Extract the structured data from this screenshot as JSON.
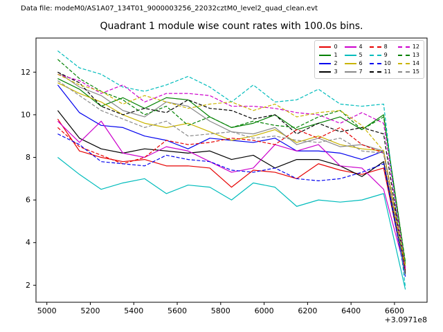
{
  "header": {
    "data_file_label": "Data file: modeM0/AS1A07_134T01_9000003256_22032cztM0_level2_quad_clean.evt"
  },
  "chart_data": {
    "type": "line",
    "title": "Quadrant 1 module wise count rates with 100.0s bins.",
    "xlabel": "",
    "ylabel": "",
    "x_offset_label": "+3.0971e8",
    "xlim": [
      4950,
      6750
    ],
    "ylim": [
      1.2,
      13.6
    ],
    "x_ticks": [
      5000,
      5200,
      5400,
      5600,
      5800,
      6000,
      6200,
      6400,
      6600
    ],
    "y_ticks": [
      2,
      4,
      6,
      8,
      10,
      12
    ],
    "grid": false,
    "legend_position": "upper right",
    "x": [
      5050,
      5150,
      5250,
      5350,
      5450,
      5550,
      5650,
      5750,
      5850,
      5950,
      6050,
      6150,
      6250,
      6350,
      6450,
      6550,
      6650
    ],
    "series": [
      {
        "name": "0",
        "color": "#e60000",
        "dash": "solid",
        "values": [
          9.8,
          8.3,
          8.0,
          7.8,
          7.9,
          7.6,
          7.6,
          7.5,
          6.6,
          7.4,
          7.3,
          7.0,
          7.7,
          7.4,
          7.2,
          7.5,
          2.6
        ]
      },
      {
        "name": "1",
        "color": "#008000",
        "dash": "solid",
        "values": [
          11.7,
          11.2,
          10.4,
          10.8,
          10.3,
          10.8,
          10.7,
          9.9,
          9.4,
          9.6,
          10.0,
          9.3,
          9.6,
          9.9,
          9.3,
          10.0,
          3.0
        ]
      },
      {
        "name": "2",
        "color": "#0000ee",
        "dash": "solid",
        "values": [
          11.4,
          10.1,
          9.5,
          9.4,
          9.0,
          8.8,
          8.4,
          8.9,
          8.8,
          8.7,
          8.9,
          8.3,
          8.3,
          8.2,
          7.9,
          8.3,
          2.8
        ]
      },
      {
        "name": "3",
        "color": "#000000",
        "dash": "solid",
        "values": [
          10.2,
          8.9,
          8.4,
          8.2,
          8.4,
          8.3,
          8.2,
          8.3,
          7.9,
          8.1,
          7.5,
          7.9,
          7.9,
          7.6,
          7.1,
          7.8,
          2.5
        ]
      },
      {
        "name": "4",
        "color": "#cc00cc",
        "dash": "solid",
        "values": [
          9.7,
          8.7,
          9.7,
          8.2,
          8.0,
          8.5,
          8.3,
          7.8,
          7.3,
          7.5,
          8.6,
          8.3,
          8.6,
          7.6,
          7.5,
          6.5,
          2.7
        ]
      },
      {
        "name": "5",
        "color": "#00bcbc",
        "dash": "solid",
        "values": [
          8.0,
          7.2,
          6.5,
          6.8,
          7.0,
          6.3,
          6.7,
          6.6,
          6.0,
          6.8,
          6.6,
          5.7,
          6.0,
          5.9,
          6.0,
          6.3,
          1.8
        ]
      },
      {
        "name": "6",
        "color": "#c9b400",
        "dash": "solid",
        "values": [
          11.5,
          11.0,
          10.6,
          10.0,
          9.6,
          9.4,
          9.6,
          9.2,
          8.8,
          9.0,
          9.3,
          8.7,
          9.0,
          8.6,
          8.4,
          8.3,
          2.9
        ]
      },
      {
        "name": "7",
        "color": "#888888",
        "dash": "solid",
        "values": [
          12.0,
          11.3,
          10.9,
          10.2,
          9.9,
          10.6,
          10.4,
          9.7,
          9.2,
          9.1,
          9.4,
          8.6,
          8.9,
          8.5,
          8.6,
          8.3,
          2.8
        ]
      },
      {
        "name": "8",
        "color": "#e60000",
        "dash": "dashed",
        "values": [
          9.4,
          8.5,
          8.1,
          7.7,
          8.0,
          8.8,
          8.6,
          8.7,
          8.9,
          8.8,
          8.6,
          9.3,
          8.9,
          9.4,
          8.6,
          8.2,
          2.7
        ]
      },
      {
        "name": "9",
        "color": "#00bcbc",
        "dash": "dashed",
        "values": [
          13.0,
          12.2,
          11.9,
          11.3,
          11.1,
          11.4,
          11.8,
          11.3,
          10.6,
          11.4,
          10.6,
          10.7,
          11.2,
          10.5,
          10.4,
          10.5,
          1.9
        ]
      },
      {
        "name": "10",
        "color": "#0000ee",
        "dash": "dashed",
        "values": [
          9.1,
          8.6,
          7.8,
          7.7,
          7.6,
          8.1,
          7.9,
          7.8,
          7.4,
          7.3,
          7.5,
          7.0,
          6.9,
          7.0,
          7.3,
          7.7,
          2.4
        ]
      },
      {
        "name": "11",
        "color": "#000000",
        "dash": "dashed",
        "values": [
          12.0,
          11.5,
          10.4,
          10.0,
          10.3,
          10.1,
          10.7,
          10.3,
          10.2,
          9.8,
          10.0,
          9.1,
          9.6,
          9.2,
          9.4,
          9.1,
          2.6
        ]
      },
      {
        "name": "12",
        "color": "#cc00cc",
        "dash": "dashed",
        "values": [
          11.9,
          11.6,
          11.0,
          11.4,
          10.6,
          11.0,
          11.0,
          10.9,
          10.4,
          10.4,
          10.3,
          10.1,
          10.0,
          9.6,
          10.1,
          9.6,
          2.8
        ]
      },
      {
        "name": "13",
        "color": "#008000",
        "dash": "dashed",
        "values": [
          12.6,
          11.7,
          11.1,
          10.7,
          10.0,
          10.4,
          9.5,
          9.9,
          9.4,
          9.7,
          9.5,
          9.4,
          9.9,
          10.2,
          9.3,
          9.9,
          3.1
        ]
      },
      {
        "name": "14",
        "color": "#c9b400",
        "dash": "dashed",
        "values": [
          11.9,
          11.4,
          11.1,
          10.5,
          10.9,
          10.6,
          10.3,
          10.5,
          10.6,
          10.2,
          10.5,
          9.9,
          10.1,
          10.2,
          9.5,
          8.3,
          2.9
        ]
      },
      {
        "name": "15",
        "color": "#888888",
        "dash": "dashed",
        "values": [
          11.6,
          10.9,
          10.2,
          9.8,
          9.4,
          9.7,
          9.0,
          9.1,
          9.2,
          8.9,
          9.0,
          8.8,
          8.7,
          8.9,
          8.3,
          8.2,
          2.5
        ]
      }
    ]
  }
}
